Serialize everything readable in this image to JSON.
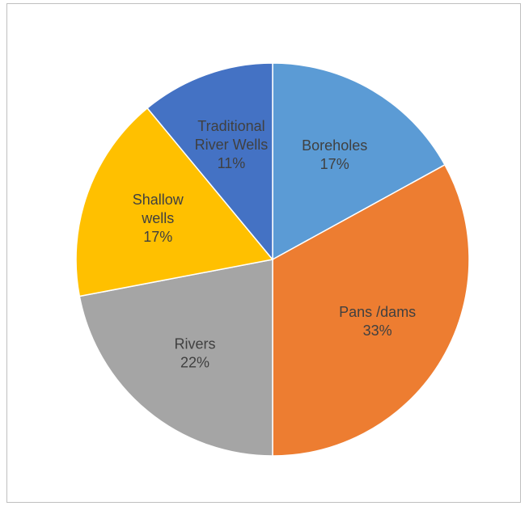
{
  "chart_data": {
    "type": "pie",
    "title": "",
    "slices": [
      {
        "label_lines": [
          "Boreholes"
        ],
        "percent_label": "17%",
        "value": 17,
        "color": "#5B9BD5"
      },
      {
        "label_lines": [
          "Pans /dams"
        ],
        "percent_label": "33%",
        "value": 33,
        "color": "#ED7D31"
      },
      {
        "label_lines": [
          "Rivers"
        ],
        "percent_label": "22%",
        "value": 22,
        "color": "#A5A5A5"
      },
      {
        "label_lines": [
          "Shallow",
          "wells"
        ],
        "percent_label": "17%",
        "value": 17,
        "color": "#FFC000"
      },
      {
        "label_lines": [
          "Traditional",
          "River Wells"
        ],
        "percent_label": "11%",
        "value": 11,
        "color": "#4472C4"
      }
    ],
    "start_angle_deg": 0,
    "direction": "clockwise",
    "slice_border_color": "#ffffff",
    "legend": "none"
  }
}
